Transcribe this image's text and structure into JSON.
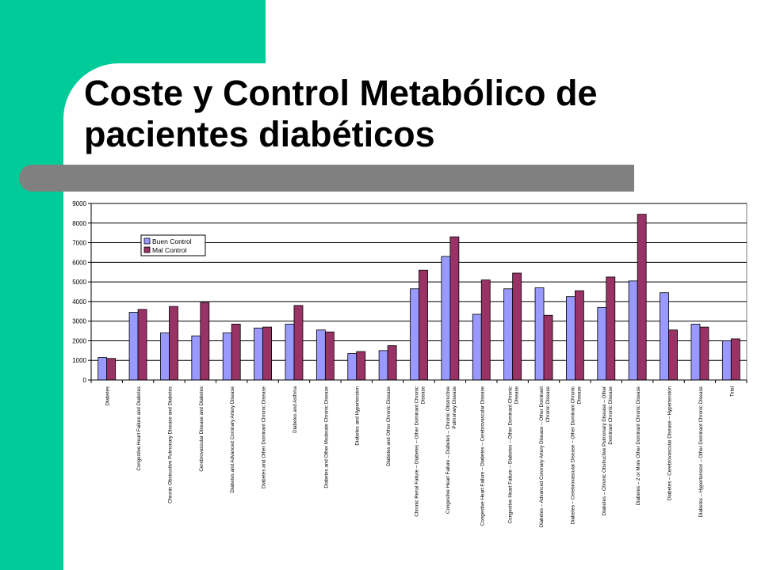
{
  "slide": {
    "title_line1": "Coste y Control Metabólico de",
    "title_line2": "pacientes diabéticos",
    "colors": {
      "teal": "#00cc99",
      "gray_rule": "#808080"
    }
  },
  "chart_data": {
    "type": "bar",
    "title": "",
    "xlabel": "",
    "ylabel": "",
    "ylim": [
      0,
      9000
    ],
    "yticks": [
      0,
      1000,
      2000,
      3000,
      4000,
      5000,
      6000,
      7000,
      8000,
      9000
    ],
    "grid": true,
    "legend_position": "top-left",
    "categories": [
      [
        "Diabetes"
      ],
      [
        "Congestive Heart Failure and Diabetes"
      ],
      [
        "Chronic Obstructive Pulmonary Disease and Diabetes"
      ],
      [
        "Cerebrovascular Disease and Diabetes"
      ],
      [
        "Diabetes and Advanced Coronary Artery Disease"
      ],
      [
        "Diabetes and Other Dominant Chronic Disease"
      ],
      [
        "Diabetes and Asthma"
      ],
      [
        "Diabetes and Other Moderate Chronic Disease"
      ],
      [
        "Diabetes and Hypertension"
      ],
      [
        "Diabetes and Other Chronic Disease"
      ],
      [
        "Chronic Renal Failure – Diabetes – Other Dominant Chronic",
        "Disease"
      ],
      [
        "Congestive Heart Failure – Diabetes – Chronic Obstructive",
        "Pulmonary Disease"
      ],
      [
        "Congestive Heart Failure – Diabetes – Cerebrovascular Disease"
      ],
      [
        "Congestive Heart Failure – Diabetes – Other Dominant Chronic",
        "Disease"
      ],
      [
        "Diabetes – Advanced Coronary Artery Disease – Other Dominant",
        "Chronic Disease"
      ],
      [
        "Diabetes – Cerebrovascular Disease – Other Dominant Chronic",
        "Disease"
      ],
      [
        "Diabetes – Chronic Obstructive Pulmonary Disease – Other",
        "Dominant Chronic Disease"
      ],
      [
        "Diabetes – 2 or More Other Dominant Chronic Disease"
      ],
      [
        "Diabetes – Cerebrovascular Disease – Hypertension"
      ],
      [
        "Diabetes – Hypertension – Other Dominant Chronic Disease"
      ],
      [
        "Total"
      ]
    ],
    "series": [
      {
        "name": "Buen Control",
        "color": "#9999ff",
        "values": [
          1150,
          3450,
          2400,
          2250,
          2400,
          2650,
          2850,
          2550,
          1350,
          1500,
          4650,
          6300,
          3350,
          4650,
          4700,
          4250,
          3700,
          5050,
          4450,
          2850,
          2000
        ]
      },
      {
        "name": "Mal Control",
        "color": "#993366",
        "values": [
          1100,
          3600,
          3750,
          3950,
          2850,
          2700,
          3800,
          2450,
          1450,
          1750,
          5600,
          7300,
          5100,
          5450,
          3300,
          4550,
          5250,
          8450,
          2550,
          2700,
          2100
        ]
      }
    ]
  }
}
